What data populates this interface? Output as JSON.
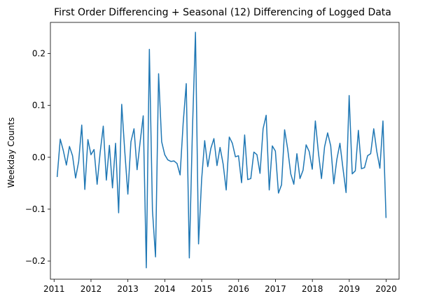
{
  "chart_data": {
    "type": "line",
    "title": "First Order Differencing + Seasonal (12) Differencing of Logged Data",
    "xlabel": "",
    "ylabel": "Weekday Counts",
    "xlim": [
      2010.9,
      2020.35
    ],
    "ylim": [
      -0.235,
      0.26
    ],
    "x_ticks": [
      2011,
      2012,
      2013,
      2014,
      2015,
      2016,
      2017,
      2018,
      2019,
      2020
    ],
    "y_ticks": [
      -0.2,
      -0.1,
      0.0,
      0.1,
      0.2
    ],
    "y_tick_labels": [
      "−0.2",
      "−0.1",
      "0.0",
      "0.1",
      "0.2"
    ],
    "grid": false,
    "line_color": "#1f77b4",
    "series": [
      {
        "x_start": 2011.083,
        "x_step": 0.0833,
        "values": [
          -0.038,
          0.035,
          0.013,
          -0.015,
          0.021,
          0.003,
          -0.04,
          -0.008,
          0.062,
          -0.062,
          0.034,
          0.005,
          0.015,
          -0.052,
          0.01,
          0.06,
          -0.044,
          0.023,
          -0.059,
          0.027,
          -0.107,
          0.102,
          0.011,
          -0.071,
          0.03,
          0.055,
          -0.024,
          0.03,
          0.08,
          -0.213,
          0.208,
          -0.102,
          -0.192,
          0.161,
          0.03,
          0.005,
          -0.005,
          -0.008,
          -0.007,
          -0.012,
          -0.034,
          0.066,
          0.142,
          -0.194,
          0.05,
          0.241,
          -0.167,
          -0.043,
          0.032,
          -0.018,
          0.017,
          0.036,
          -0.016,
          0.019,
          -0.013,
          -0.063,
          0.039,
          0.027,
          0.001,
          0.003,
          -0.049,
          0.043,
          -0.043,
          -0.041,
          0.01,
          0.005,
          -0.031,
          0.055,
          0.081,
          -0.063,
          0.022,
          0.012,
          -0.069,
          -0.053,
          0.053,
          0.016,
          -0.032,
          -0.052,
          0.007,
          -0.041,
          -0.025,
          0.024,
          0.011,
          -0.023,
          0.07,
          0.009,
          -0.041,
          0.02,
          0.047,
          0.022,
          -0.051,
          -0.004,
          0.027,
          -0.022,
          -0.068,
          0.119,
          -0.032,
          -0.026,
          0.052,
          -0.022,
          -0.02,
          0.003,
          0.007,
          0.055,
          0.011,
          -0.021,
          0.07,
          -0.117
        ]
      }
    ]
  }
}
